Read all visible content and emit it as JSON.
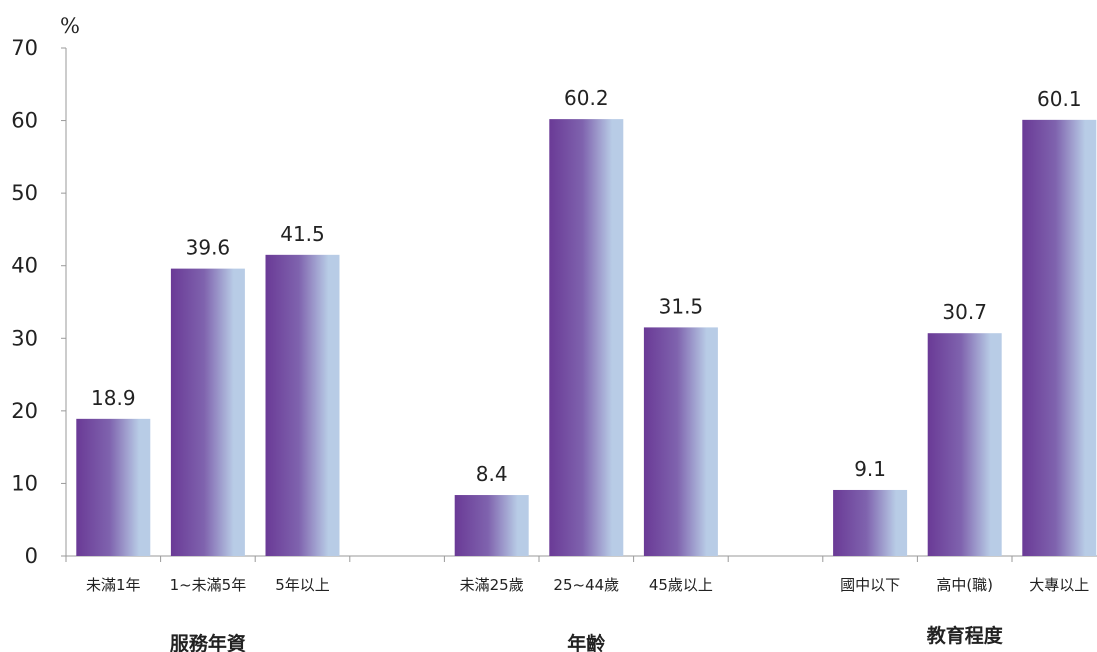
{
  "chart_data": {
    "type": "bar",
    "y_unit": "%",
    "ylim": [
      0,
      70
    ],
    "yticks": [
      0,
      10,
      20,
      30,
      40,
      50,
      60,
      70
    ],
    "grid": false,
    "legend": "none",
    "groups": [
      {
        "name": "服務年資",
        "categories": [
          "未滿1年",
          "1~未滿5年",
          "5年以上"
        ],
        "values": [
          18.9,
          39.6,
          41.5
        ]
      },
      {
        "name": "年齡",
        "categories": [
          "未滿25歲",
          "25~44歲",
          "45歲以上"
        ],
        "values": [
          8.4,
          60.2,
          31.5
        ]
      },
      {
        "name": "教育程度",
        "categories": [
          "國中以下",
          "高中(職)",
          "大專以上"
        ],
        "values": [
          9.1,
          30.7,
          60.1
        ]
      }
    ],
    "colors": {
      "bar_dark": "#6a3a96",
      "bar_mid": "#7f63ae",
      "bar_light": "#b8cce6",
      "axis": "#9a9a9a",
      "text": "#222222"
    }
  }
}
